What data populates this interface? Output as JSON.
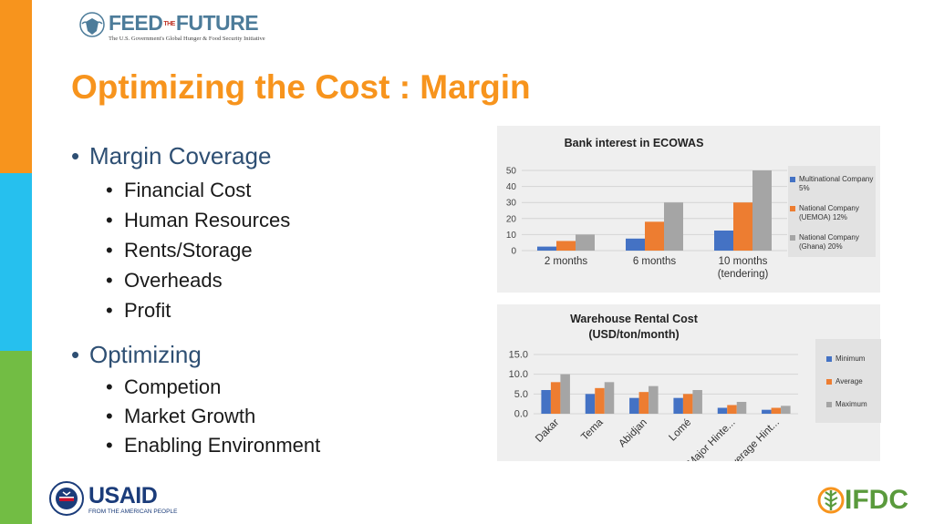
{
  "header": {
    "logo_text": "FEED THE FUTURE",
    "logo_word_left": "FEED",
    "logo_word_mid": "THE",
    "logo_word_right": "FUTURE",
    "logo_tagline": "The U.S. Government's Global Hunger & Food Security Initiative"
  },
  "slide": {
    "title": "Optimizing the Cost : Margin",
    "sections": [
      {
        "label": "Margin Coverage",
        "items": [
          "Financial Cost",
          "Human Resources",
          "Rents/Storage",
          "Overheads",
          "Profit"
        ]
      },
      {
        "label": "Optimizing",
        "items": [
          "Competion",
          "Market Growth",
          "Enabling Environment"
        ]
      }
    ]
  },
  "colors": {
    "orange": "#f7941d",
    "blue": "#26c0ee",
    "green": "#72bd44",
    "series_blue": "#4472c4",
    "series_orange": "#ed7d31",
    "series_gray": "#a5a5a5"
  },
  "chart_data": [
    {
      "type": "bar",
      "title": "Bank interest in ECOWAS",
      "categories": [
        [
          "2 months"
        ],
        [
          "6 months"
        ],
        [
          "10 months",
          "(tendering)"
        ]
      ],
      "series": [
        {
          "name": [
            "Multinational Company",
            "5%"
          ],
          "values": [
            2.5,
            7.5,
            12.5
          ]
        },
        {
          "name": [
            "National Company",
            "(UEMOA) 12%"
          ],
          "values": [
            6,
            18,
            30
          ]
        },
        {
          "name": [
            "National Company",
            "(Ghana) 20%"
          ],
          "values": [
            10,
            30,
            50
          ]
        }
      ],
      "ylim": [
        0,
        50
      ],
      "yticks": [
        "0",
        "10",
        "20",
        "30",
        "40",
        "50"
      ],
      "legend": "right",
      "grid": true
    },
    {
      "type": "bar",
      "title": [
        "Warehouse Rental Cost",
        "(USD/ton/month)"
      ],
      "categories": [
        "Dakar",
        "Tema",
        "Abidjan",
        "Lomé",
        "Major Hinte...",
        "Average Hint..."
      ],
      "series": [
        {
          "name": "Minimum",
          "values": [
            6,
            5,
            4,
            4,
            1.5,
            1
          ]
        },
        {
          "name": "Average",
          "values": [
            8,
            6.5,
            5.5,
            5,
            2.2,
            1.5
          ]
        },
        {
          "name": "Maximum",
          "values": [
            10,
            8,
            7,
            6,
            3,
            2
          ]
        }
      ],
      "ylim": [
        0,
        15
      ],
      "yticks": [
        "0.0",
        "5.0",
        "10.0",
        "15.0"
      ],
      "legend": "right",
      "grid": true
    }
  ],
  "footer": {
    "usaid_word": "USAID",
    "usaid_sub": "FROM THE AMERICAN PEOPLE",
    "ifdc_word": "IFDC"
  }
}
